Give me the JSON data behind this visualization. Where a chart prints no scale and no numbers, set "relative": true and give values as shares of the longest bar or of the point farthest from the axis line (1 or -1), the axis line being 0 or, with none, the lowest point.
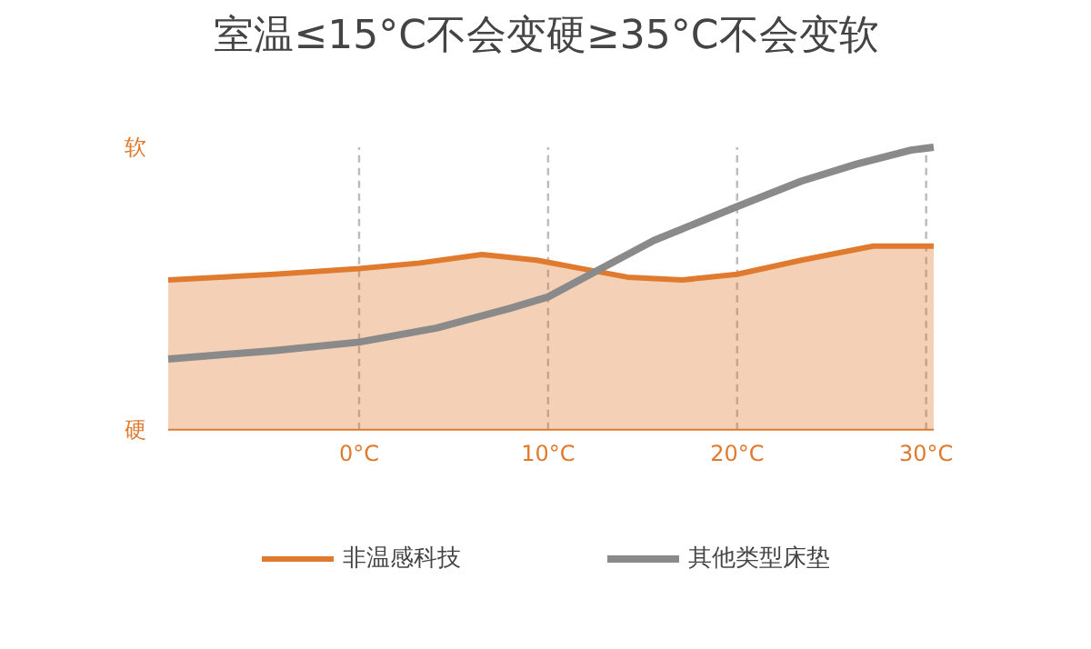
{
  "chart_data": {
    "type": "line",
    "title": "室温≤15°C不会变硬≥35°C不会变软",
    "relative": true,
    "xlim": [
      -10.1,
      30.4
    ],
    "xticks": [
      {
        "value": 0,
        "label": "0°C"
      },
      {
        "value": 10,
        "label": "10°C"
      },
      {
        "value": 20,
        "label": "20°C"
      },
      {
        "value": 30,
        "label": "30°C"
      }
    ],
    "grid": "x",
    "legend": "bottom",
    "annotations": [
      "软",
      "硬"
    ],
    "series": [
      {
        "name": "非温感科技",
        "type": "area",
        "color": "#e07a2e",
        "x": [
          -10.1,
          -4.5,
          0,
          3.2,
          6.5,
          9.4,
          11.8,
          14.2,
          17.1,
          20,
          23.4,
          27.2,
          30.4
        ],
        "values": [
          0.53,
          0.55,
          0.57,
          0.59,
          0.62,
          0.6,
          0.57,
          0.54,
          0.53,
          0.55,
          0.6,
          0.65,
          0.65
        ]
      },
      {
        "name": "其他类型床垫",
        "color": "#8a8a8a",
        "x": [
          -10.1,
          -4.5,
          0,
          4.1,
          8,
          10,
          12.8,
          15.6,
          20,
          23.4,
          26.3,
          29.2,
          30.4
        ],
        "values": [
          0.25,
          0.28,
          0.31,
          0.36,
          0.43,
          0.47,
          0.57,
          0.67,
          0.79,
          0.88,
          0.94,
          0.99,
          1
        ]
      }
    ]
  }
}
